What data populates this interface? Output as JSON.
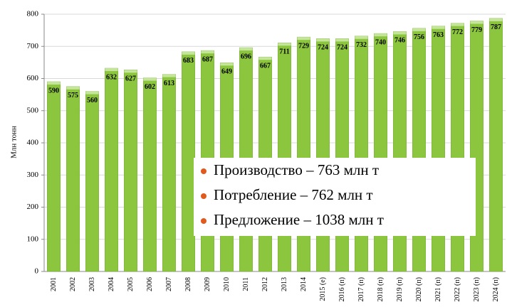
{
  "chart_data": {
    "type": "bar",
    "y_label": "Млн тонн",
    "categories": [
      "2001",
      "2002",
      "2003",
      "2004",
      "2005",
      "2006",
      "2007",
      "2008",
      "2009",
      "2010",
      "2011",
      "2012",
      "2013",
      "2014",
      "2015 (е)",
      "2016 (п)",
      "2017 (п)",
      "2018 (п)",
      "2019 (п)",
      "2020 (п)",
      "2021 (п)",
      "2022 (п)",
      "2023 (п)",
      "2024 (п)"
    ],
    "values": [
      590,
      575,
      560,
      632,
      627,
      602,
      613,
      683,
      687,
      649,
      696,
      667,
      711,
      729,
      724,
      724,
      732,
      740,
      746,
      756,
      763,
      772,
      779,
      787
    ],
    "color": "#8cc63e",
    "ylim": [
      0,
      800
    ],
    "yticks": [
      0,
      100,
      200,
      300,
      400,
      500,
      600,
      700,
      800
    ],
    "grid": true,
    "annotations": [
      "Производство – 763 млн т",
      "Потребление – 762 млн т",
      "Предложение – 1038 млн т"
    ]
  }
}
